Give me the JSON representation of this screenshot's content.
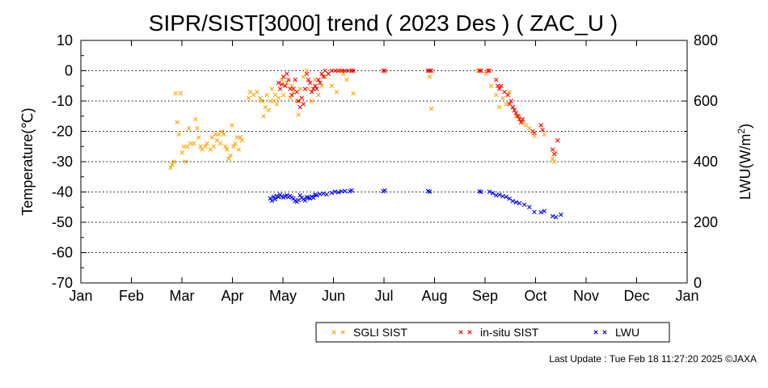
{
  "chart_data": {
    "type": "scatter",
    "title": "SIPR/SIST[3000] trend ( 2023 Des ) ( ZAC_U )",
    "ylabel": "Temperature(℃)",
    "y2label": "LWU(W/m",
    "y2label_sup": "2",
    "y2label_close": ")",
    "ylim": [
      -70,
      10
    ],
    "y2lim": [
      0,
      800
    ],
    "yticks": [
      "10",
      "0",
      "-10",
      "-20",
      "-30",
      "-40",
      "-50",
      "-60",
      "-70"
    ],
    "y2ticks": [
      "800",
      "600",
      "400",
      "200",
      "0"
    ],
    "xticks": [
      "Jan",
      "Feb",
      "Mar",
      "Apr",
      "May",
      "Jun",
      "Jul",
      "Aug",
      "Sep",
      "Oct",
      "Nov",
      "Dec",
      "Jan"
    ],
    "grid": "horizontal dotted",
    "legend_position": "bottom",
    "series": [
      {
        "name": "SGLI SIST",
        "color": "#ffa500",
        "axis": "left",
        "points": [
          [
            "2023-02-24",
            -32
          ],
          [
            "2023-02-25",
            -31
          ],
          [
            "2023-02-26",
            -30
          ],
          [
            "2023-02-27",
            -7.5
          ],
          [
            "2023-02-28",
            -17
          ],
          [
            "2023-03-01",
            -21
          ],
          [
            "2023-03-02",
            -7.5
          ],
          [
            "2023-03-03",
            -27
          ],
          [
            "2023-03-04",
            -25
          ],
          [
            "2023-03-05",
            -30
          ],
          [
            "2023-03-06",
            -25
          ],
          [
            "2023-03-07",
            -19
          ],
          [
            "2023-03-08",
            -24
          ],
          [
            "2023-03-10",
            -24
          ],
          [
            "2023-03-11",
            -16
          ],
          [
            "2023-03-12",
            -19
          ],
          [
            "2023-03-13",
            -22
          ],
          [
            "2023-03-14",
            -25
          ],
          [
            "2023-03-15",
            -26
          ],
          [
            "2023-03-17",
            -25
          ],
          [
            "2023-03-18",
            -24
          ],
          [
            "2023-03-20",
            -26
          ],
          [
            "2023-03-21",
            -22
          ],
          [
            "2023-03-22",
            -25
          ],
          [
            "2023-03-23",
            -21
          ],
          [
            "2023-03-24",
            -23
          ],
          [
            "2023-03-25",
            -21
          ],
          [
            "2023-03-26",
            -24
          ],
          [
            "2023-03-27",
            -20
          ],
          [
            "2023-03-28",
            -21
          ],
          [
            "2023-03-29",
            -25
          ],
          [
            "2023-03-30",
            -26
          ],
          [
            "2023-03-31",
            -29
          ],
          [
            "2023-04-01",
            -28
          ],
          [
            "2023-04-02",
            -18
          ],
          [
            "2023-04-03",
            -25
          ],
          [
            "2023-04-04",
            -24
          ],
          [
            "2023-04-05",
            -22
          ],
          [
            "2023-04-06",
            -26
          ],
          [
            "2023-04-07",
            -22
          ],
          [
            "2023-04-08",
            -23
          ],
          [
            "2023-04-12",
            -9
          ],
          [
            "2023-04-13",
            -7
          ],
          [
            "2023-04-15",
            -8
          ],
          [
            "2023-04-17",
            -7
          ],
          [
            "2023-04-19",
            -9
          ],
          [
            "2023-04-20",
            -10
          ],
          [
            "2023-04-21",
            -15
          ],
          [
            "2023-04-22",
            -12
          ],
          [
            "2023-04-23",
            -8
          ],
          [
            "2023-04-24",
            -13
          ],
          [
            "2023-04-25",
            -10
          ],
          [
            "2023-04-26",
            -6
          ],
          [
            "2023-04-27",
            -10
          ],
          [
            "2023-04-28",
            -8
          ],
          [
            "2023-04-29",
            -11
          ],
          [
            "2023-04-30",
            -9
          ],
          [
            "2023-05-02",
            -3
          ],
          [
            "2023-05-03",
            -8
          ],
          [
            "2023-05-05",
            -4
          ],
          [
            "2023-05-07",
            -9
          ],
          [
            "2023-05-08",
            -5
          ],
          [
            "2023-05-09",
            -7
          ],
          [
            "2023-05-11",
            -10
          ],
          [
            "2023-05-12",
            -14.5
          ],
          [
            "2023-05-13",
            -6
          ],
          [
            "2023-05-15",
            -2
          ],
          [
            "2023-05-17",
            0
          ],
          [
            "2023-05-18",
            -6
          ],
          [
            "2023-05-20",
            -10
          ],
          [
            "2023-05-22",
            -3
          ],
          [
            "2023-05-24",
            -8
          ],
          [
            "2023-05-26",
            -5
          ],
          [
            "2023-05-28",
            -2
          ],
          [
            "2023-05-30",
            -1
          ],
          [
            "2023-06-01",
            -5
          ],
          [
            "2023-06-04",
            -7
          ],
          [
            "2023-06-06",
            0
          ],
          [
            "2023-06-08",
            -1
          ],
          [
            "2023-06-10",
            -3
          ],
          [
            "2023-06-13",
            0
          ],
          [
            "2023-06-14",
            -7.5
          ],
          [
            "2023-07-03",
            0
          ],
          [
            "2023-07-30",
            -2
          ],
          [
            "2023-07-31",
            -12.5
          ],
          [
            "2023-08-28",
            0
          ],
          [
            "2023-09-02",
            -1
          ],
          [
            "2023-09-05",
            -5
          ],
          [
            "2023-09-08",
            -8
          ],
          [
            "2023-09-10",
            -12
          ],
          [
            "2023-09-12",
            -9
          ],
          [
            "2023-09-14",
            -11
          ],
          [
            "2023-09-16",
            -7
          ],
          [
            "2023-09-18",
            -12
          ],
          [
            "2023-09-20",
            -15
          ],
          [
            "2023-09-22",
            -15
          ],
          [
            "2023-09-24",
            -17
          ],
          [
            "2023-09-26",
            -18
          ],
          [
            "2023-09-28",
            -19
          ],
          [
            "2023-09-30",
            -20
          ],
          [
            "2023-10-01",
            -21.5
          ],
          [
            "2023-10-05",
            -18
          ],
          [
            "2023-10-07",
            -21
          ],
          [
            "2023-10-12",
            -29
          ],
          [
            "2023-10-13",
            -30
          ],
          [
            "2023-10-14",
            -27
          ]
        ]
      },
      {
        "name": "in-situ SIST",
        "color": "#ff0000",
        "axis": "left",
        "points": [
          [
            "2023-04-30",
            -4
          ],
          [
            "2023-05-01",
            -6
          ],
          [
            "2023-05-02",
            -4.5
          ],
          [
            "2023-05-03",
            -2
          ],
          [
            "2023-05-04",
            -5
          ],
          [
            "2023-05-05",
            -1
          ],
          [
            "2023-05-06",
            -3
          ],
          [
            "2023-05-07",
            -6
          ],
          [
            "2023-05-08",
            -8
          ],
          [
            "2023-05-09",
            -6
          ],
          [
            "2023-05-10",
            -3
          ],
          [
            "2023-05-11",
            -7
          ],
          [
            "2023-05-12",
            -10
          ],
          [
            "2023-05-13",
            -12
          ],
          [
            "2023-05-14",
            -9
          ],
          [
            "2023-05-15",
            -11
          ],
          [
            "2023-05-16",
            -6
          ],
          [
            "2023-05-17",
            -1
          ],
          [
            "2023-05-18",
            -3
          ],
          [
            "2023-05-19",
            -4
          ],
          [
            "2023-05-20",
            -7
          ],
          [
            "2023-05-21",
            -6
          ],
          [
            "2023-05-22",
            -5
          ],
          [
            "2023-05-23",
            -6
          ],
          [
            "2023-05-24",
            -3
          ],
          [
            "2023-05-25",
            -4
          ],
          [
            "2023-05-26",
            -1
          ],
          [
            "2023-05-27",
            -2
          ],
          [
            "2023-05-28",
            0
          ],
          [
            "2023-05-30",
            -1
          ],
          [
            "2023-06-01",
            0
          ],
          [
            "2023-06-03",
            0
          ],
          [
            "2023-06-05",
            0
          ],
          [
            "2023-06-07",
            0
          ],
          [
            "2023-06-09",
            0
          ],
          [
            "2023-06-11",
            0
          ],
          [
            "2023-06-13",
            0
          ],
          [
            "2023-06-14",
            0
          ],
          [
            "2023-07-02",
            0
          ],
          [
            "2023-07-03",
            0
          ],
          [
            "2023-07-29",
            0
          ],
          [
            "2023-07-30",
            0
          ],
          [
            "2023-07-31",
            0
          ],
          [
            "2023-08-29",
            0
          ],
          [
            "2023-08-30",
            0
          ],
          [
            "2023-09-03",
            0
          ],
          [
            "2023-09-04",
            0
          ],
          [
            "2023-09-08",
            -3
          ],
          [
            "2023-09-09",
            -5
          ],
          [
            "2023-09-10",
            -6
          ],
          [
            "2023-09-11",
            -5
          ],
          [
            "2023-09-13",
            -7
          ],
          [
            "2023-09-15",
            -8
          ],
          [
            "2023-09-16",
            -11
          ],
          [
            "2023-09-17",
            -10
          ],
          [
            "2023-09-18",
            -12
          ],
          [
            "2023-09-19",
            -13
          ],
          [
            "2023-09-20",
            -14
          ],
          [
            "2023-09-21",
            -15
          ],
          [
            "2023-09-22",
            -16
          ],
          [
            "2023-09-23",
            -17
          ],
          [
            "2023-09-24",
            -16
          ],
          [
            "2023-09-30",
            -20
          ],
          [
            "2023-10-01",
            -20.5
          ],
          [
            "2023-10-05",
            -18
          ],
          [
            "2023-10-06",
            -19.5
          ],
          [
            "2023-10-12",
            -26
          ],
          [
            "2023-10-13",
            -27.5
          ],
          [
            "2023-10-15",
            -23
          ]
        ]
      },
      {
        "name": "LWU",
        "color": "#0000ff",
        "axis": "right",
        "points": [
          [
            "2023-04-25",
            279
          ],
          [
            "2023-04-26",
            271
          ],
          [
            "2023-04-27",
            284
          ],
          [
            "2023-04-28",
            276
          ],
          [
            "2023-04-29",
            287
          ],
          [
            "2023-04-30",
            283
          ],
          [
            "2023-05-01",
            291
          ],
          [
            "2023-05-02",
            285
          ],
          [
            "2023-05-03",
            282
          ],
          [
            "2023-05-04",
            286
          ],
          [
            "2023-05-05",
            289
          ],
          [
            "2023-05-06",
            283
          ],
          [
            "2023-05-07",
            287
          ],
          [
            "2023-05-08",
            282
          ],
          [
            "2023-05-09",
            278
          ],
          [
            "2023-05-10",
            271
          ],
          [
            "2023-05-11",
            268
          ],
          [
            "2023-05-12",
            273
          ],
          [
            "2023-05-13",
            289
          ],
          [
            "2023-05-14",
            281
          ],
          [
            "2023-05-15",
            276
          ],
          [
            "2023-05-16",
            272
          ],
          [
            "2023-05-17",
            283
          ],
          [
            "2023-05-18",
            281
          ],
          [
            "2023-05-19",
            279
          ],
          [
            "2023-05-20",
            285
          ],
          [
            "2023-05-21",
            281
          ],
          [
            "2023-05-22",
            291
          ],
          [
            "2023-05-23",
            289
          ],
          [
            "2023-05-25",
            293
          ],
          [
            "2023-05-27",
            295
          ],
          [
            "2023-05-29",
            292
          ],
          [
            "2023-06-01",
            297
          ],
          [
            "2023-06-03",
            301
          ],
          [
            "2023-06-05",
            299
          ],
          [
            "2023-06-07",
            302
          ],
          [
            "2023-06-09",
            303
          ],
          [
            "2023-06-12",
            302
          ],
          [
            "2023-06-13",
            305
          ],
          [
            "2023-07-02",
            302
          ],
          [
            "2023-07-03",
            305
          ],
          [
            "2023-07-29",
            303
          ],
          [
            "2023-07-30",
            301
          ],
          [
            "2023-08-29",
            302
          ],
          [
            "2023-08-30",
            300
          ],
          [
            "2023-09-04",
            301
          ],
          [
            "2023-09-06",
            296
          ],
          [
            "2023-09-08",
            289
          ],
          [
            "2023-09-10",
            291
          ],
          [
            "2023-09-12",
            286
          ],
          [
            "2023-09-14",
            284
          ],
          [
            "2023-09-16",
            278
          ],
          [
            "2023-09-18",
            270
          ],
          [
            "2023-09-20",
            266
          ],
          [
            "2023-09-22",
            263
          ],
          [
            "2023-09-25",
            258
          ],
          [
            "2023-09-28",
            250
          ],
          [
            "2023-10-01",
            234
          ],
          [
            "2023-10-05",
            233
          ],
          [
            "2023-10-07",
            237
          ],
          [
            "2023-10-12",
            220
          ],
          [
            "2023-10-14",
            217
          ],
          [
            "2023-10-17",
            225
          ]
        ]
      }
    ]
  },
  "footer": {
    "last_update": "Last Update : Tue Feb 18 11:27:20 2025  ©JAXA"
  }
}
